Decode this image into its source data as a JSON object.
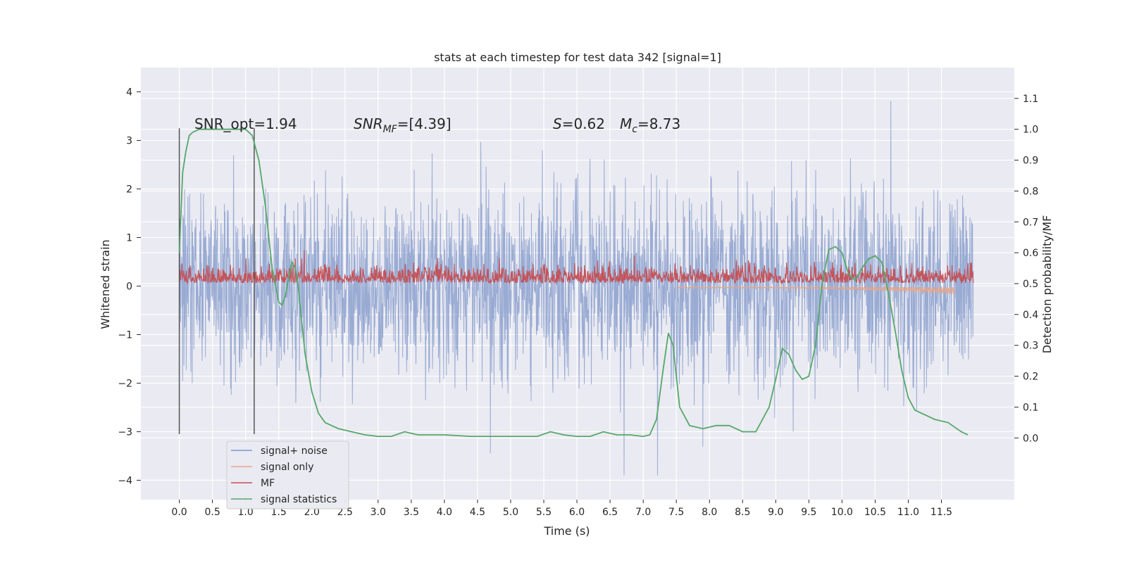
{
  "chart_data": {
    "type": "line",
    "title": "stats at each timestep for test data 342 [signal=1]",
    "xlabel": "Time (s)",
    "ylabel_left": "Whitened strain",
    "ylabel_right": "Detection probability/MF",
    "xlim": [
      -0.58,
      12.6
    ],
    "ylim_left": [
      -4.4,
      4.5
    ],
    "ylim_right": [
      -0.2,
      1.2
    ],
    "x_ticks": [
      0.0,
      0.5,
      1.0,
      1.5,
      2.0,
      2.5,
      3.0,
      3.5,
      4.0,
      4.5,
      5.0,
      5.5,
      6.0,
      6.5,
      7.0,
      7.5,
      8.0,
      8.5,
      9.0,
      9.5,
      10.0,
      10.5,
      11.0,
      11.5
    ],
    "x_tick_labels": [
      "0.0",
      "0.5",
      "1.0",
      "1.5",
      "2.0",
      "2.5",
      "3.0",
      "3.5",
      "4.0",
      "4.5",
      "5.0",
      "5.5",
      "6.0",
      "6.5",
      "7.0",
      "7.5",
      "8.0",
      "8.5",
      "9.0",
      "9.5",
      "10.0",
      "10.5",
      "11.0",
      "11.5"
    ],
    "y_left_ticks": [
      4,
      3,
      2,
      1,
      0,
      -1,
      -2,
      -3,
      -4
    ],
    "y_left_tick_labels": [
      "4",
      "3",
      "2",
      "1",
      "0",
      "−1",
      "−2",
      "−3",
      "−4"
    ],
    "y_right_ticks": [
      1.1,
      1.0,
      0.9,
      0.8,
      0.7,
      0.6,
      0.5,
      0.4,
      0.3,
      0.2,
      0.1,
      0.0
    ],
    "y_right_tick_labels": [
      "1.1",
      "1.0",
      "0.9",
      "0.8",
      "0.7",
      "0.6",
      "0.5",
      "0.4",
      "0.3",
      "0.2",
      "0.1",
      "0.0"
    ],
    "grid": true,
    "legend_placement": "lower-left",
    "annotations": {
      "snr_opt": "SNR_opt=1.94",
      "snr_mf_prefix": "SNR",
      "snr_mf_sub": "MF",
      "snr_mf_value": "=[4.39]",
      "s_symbol": "S",
      "s_value": "=0.62",
      "mc_symbol": "M",
      "mc_sub": "c",
      "mc_value": "=8.73"
    },
    "vertical_markers_x": [
      0.0,
      1.13
    ],
    "vertical_markers_ylim_left": [
      -3.05,
      3.25
    ],
    "series": [
      {
        "name": "signal+ noise",
        "color": "#7d96c8",
        "axis": "left",
        "x_range": [
          0.0,
          11.98
        ],
        "envelope_typical": [
          -2.0,
          2.0
        ],
        "envelope_peaks": [
          -3.9,
          4.1
        ]
      },
      {
        "name": "signal only",
        "color": "#e8a586",
        "axis": "left",
        "x_range": [
          7.5,
          11.7
        ],
        "envelope_end": [
          -0.3,
          0.05
        ]
      },
      {
        "name": "MF",
        "color": "#c44e52",
        "axis": "left",
        "x_range": [
          0.0,
          11.98
        ],
        "envelope": [
          0.0,
          0.85
        ]
      },
      {
        "name": "signal statistics",
        "color": "#55a868",
        "axis": "right",
        "x": [
          0.0,
          0.05,
          0.1,
          0.15,
          0.2,
          0.3,
          0.5,
          0.7,
          0.9,
          1.0,
          1.1,
          1.2,
          1.3,
          1.4,
          1.5,
          1.55,
          1.6,
          1.65,
          1.7,
          1.75,
          1.8,
          1.85,
          1.9,
          2.0,
          2.1,
          2.2,
          2.4,
          2.6,
          2.8,
          3.0,
          3.2,
          3.4,
          3.6,
          3.8,
          4.0,
          4.4,
          4.8,
          5.2,
          5.4,
          5.6,
          5.8,
          6.0,
          6.2,
          6.4,
          6.6,
          6.8,
          7.0,
          7.1,
          7.2,
          7.3,
          7.38,
          7.45,
          7.55,
          7.7,
          7.9,
          8.1,
          8.3,
          8.5,
          8.7,
          8.9,
          9.0,
          9.1,
          9.2,
          9.3,
          9.4,
          9.5,
          9.6,
          9.7,
          9.8,
          9.9,
          10.0,
          10.1,
          10.2,
          10.3,
          10.4,
          10.5,
          10.6,
          10.7,
          10.8,
          10.9,
          11.0,
          11.1,
          11.2,
          11.3,
          11.4,
          11.6,
          11.8,
          11.9
        ],
        "y": [
          0.6,
          0.86,
          0.93,
          0.98,
          0.99,
          1.0,
          1.0,
          1.0,
          1.0,
          1.0,
          0.98,
          0.9,
          0.75,
          0.55,
          0.44,
          0.43,
          0.46,
          0.52,
          0.57,
          0.55,
          0.48,
          0.37,
          0.27,
          0.15,
          0.08,
          0.05,
          0.03,
          0.02,
          0.01,
          0.005,
          0.005,
          0.02,
          0.01,
          0.01,
          0.01,
          0.005,
          0.005,
          0.005,
          0.005,
          0.02,
          0.01,
          0.005,
          0.005,
          0.02,
          0.01,
          0.01,
          0.005,
          0.01,
          0.06,
          0.22,
          0.34,
          0.3,
          0.1,
          0.04,
          0.03,
          0.04,
          0.04,
          0.02,
          0.02,
          0.1,
          0.19,
          0.29,
          0.27,
          0.22,
          0.19,
          0.2,
          0.3,
          0.5,
          0.61,
          0.62,
          0.6,
          0.53,
          0.51,
          0.55,
          0.58,
          0.59,
          0.57,
          0.47,
          0.35,
          0.22,
          0.13,
          0.09,
          0.08,
          0.07,
          0.06,
          0.05,
          0.02,
          0.01
        ]
      }
    ]
  }
}
